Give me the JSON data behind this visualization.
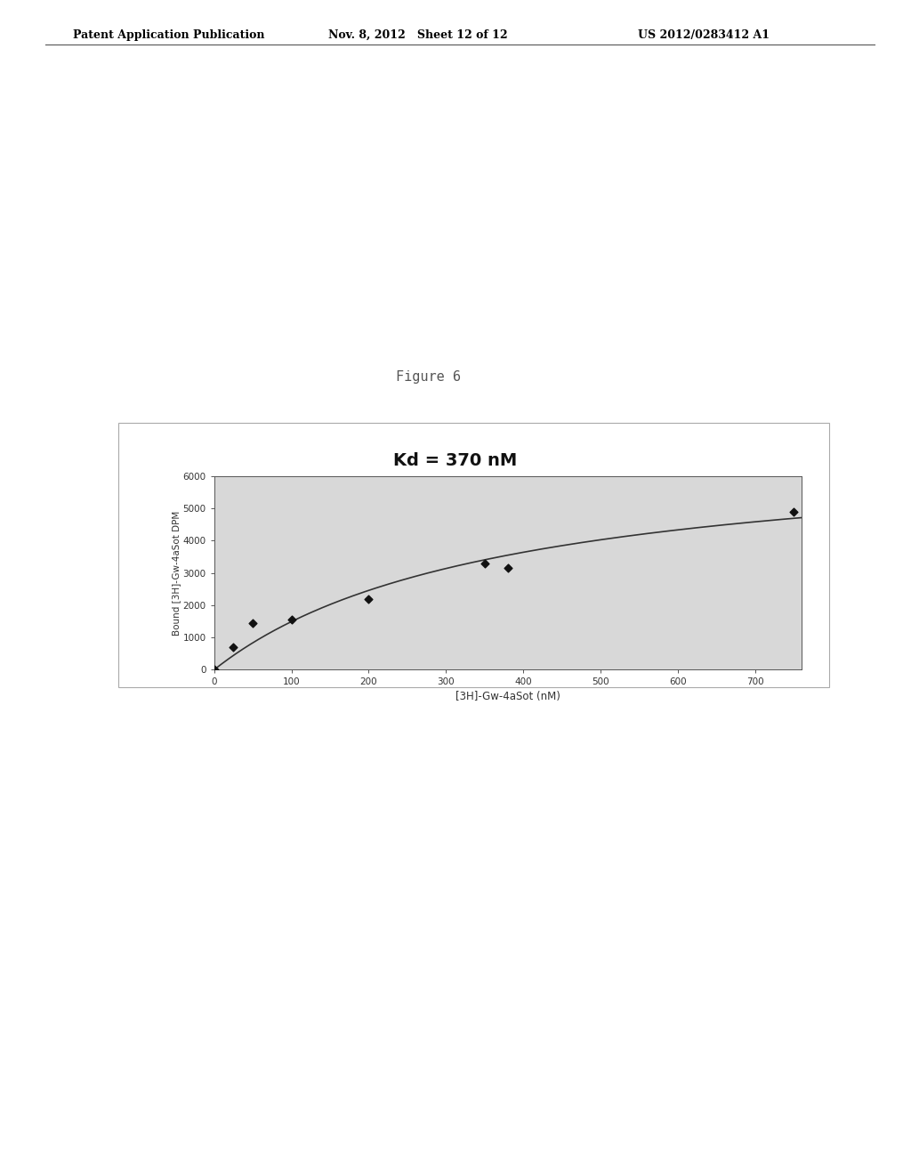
{
  "figure_label": "Figure 6",
  "header_left": "Patent Application Publication",
  "header_mid": "Nov. 8, 2012   Sheet 12 of 12",
  "header_right": "US 2012/0283412 A1",
  "kd_annotation": "Kd = 370 nM",
  "xlabel": "[3H]-Gw-4aSot (nM)",
  "ylabel": "Bound [3H]-Gw-4aSot DPM",
  "xlim": [
    0,
    760
  ],
  "ylim": [
    0,
    6000
  ],
  "xticks": [
    0,
    100,
    200,
    300,
    400,
    500,
    600,
    700
  ],
  "yticks": [
    0,
    1000,
    2000,
    3000,
    4000,
    5000,
    6000
  ],
  "data_x": [
    0,
    25,
    50,
    100,
    200,
    350,
    380,
    750
  ],
  "data_y": [
    0,
    700,
    1450,
    1550,
    2200,
    3300,
    3150,
    4900
  ],
  "Bmax": 7000,
  "Kd": 370,
  "background_color": "#ffffff",
  "plot_bg": "#d8d8d8",
  "outer_box_bg": "#e8e8e8",
  "line_color": "#333333",
  "point_color": "#111111",
  "header_color": "#000000",
  "figure_label_color": "#555555",
  "annotation_color": "#111111",
  "border_color": "#aaaaaa"
}
